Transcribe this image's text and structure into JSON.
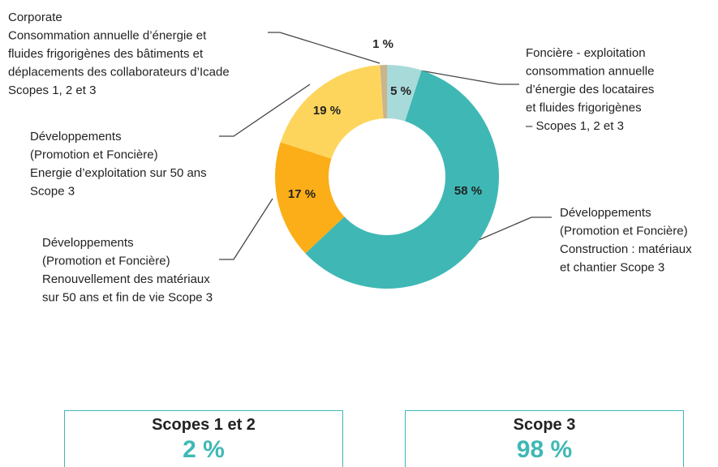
{
  "chart_data": {
    "type": "donut",
    "categories": [
      [
        "Corporate",
        "Consommation annuelle d’énergie et",
        "fluides frigorigènes des bâtiments et",
        "déplacements des collaborateurs d’Icade",
        "Scopes 1, 2 et 3"
      ],
      [
        "Foncière - exploitation",
        "consommation annuelle",
        "d’énergie des locataires",
        "et fluides frigorigènes",
        "– Scopes 1, 2 et 3"
      ],
      [
        "Développements",
        "(Promotion et Foncière)",
        "Construction : matériaux",
        "et chantier Scope 3"
      ],
      [
        "Développements",
        "(Promotion et Foncière)",
        "Renouvellement des matériaux",
        "sur 50 ans et fin de vie Scope 3"
      ],
      [
        "Développements",
        "(Promotion et Foncière)",
        "Energie d’exploitation sur 50 ans",
        "Scope 3"
      ]
    ],
    "values": [
      1,
      5,
      58,
      17,
      19
    ],
    "value_labels": [
      "1 %",
      "5 %",
      "58 %",
      "17 %",
      "19 %"
    ],
    "colors": [
      "#c9b48c",
      "#a8dad9",
      "#3fb8b5",
      "#fbae17",
      "#fdd55c"
    ]
  },
  "summary": [
    {
      "title": "Scopes 1 et 2",
      "value": "2 %"
    },
    {
      "title": "Scope 3",
      "value": "98 %"
    }
  ]
}
